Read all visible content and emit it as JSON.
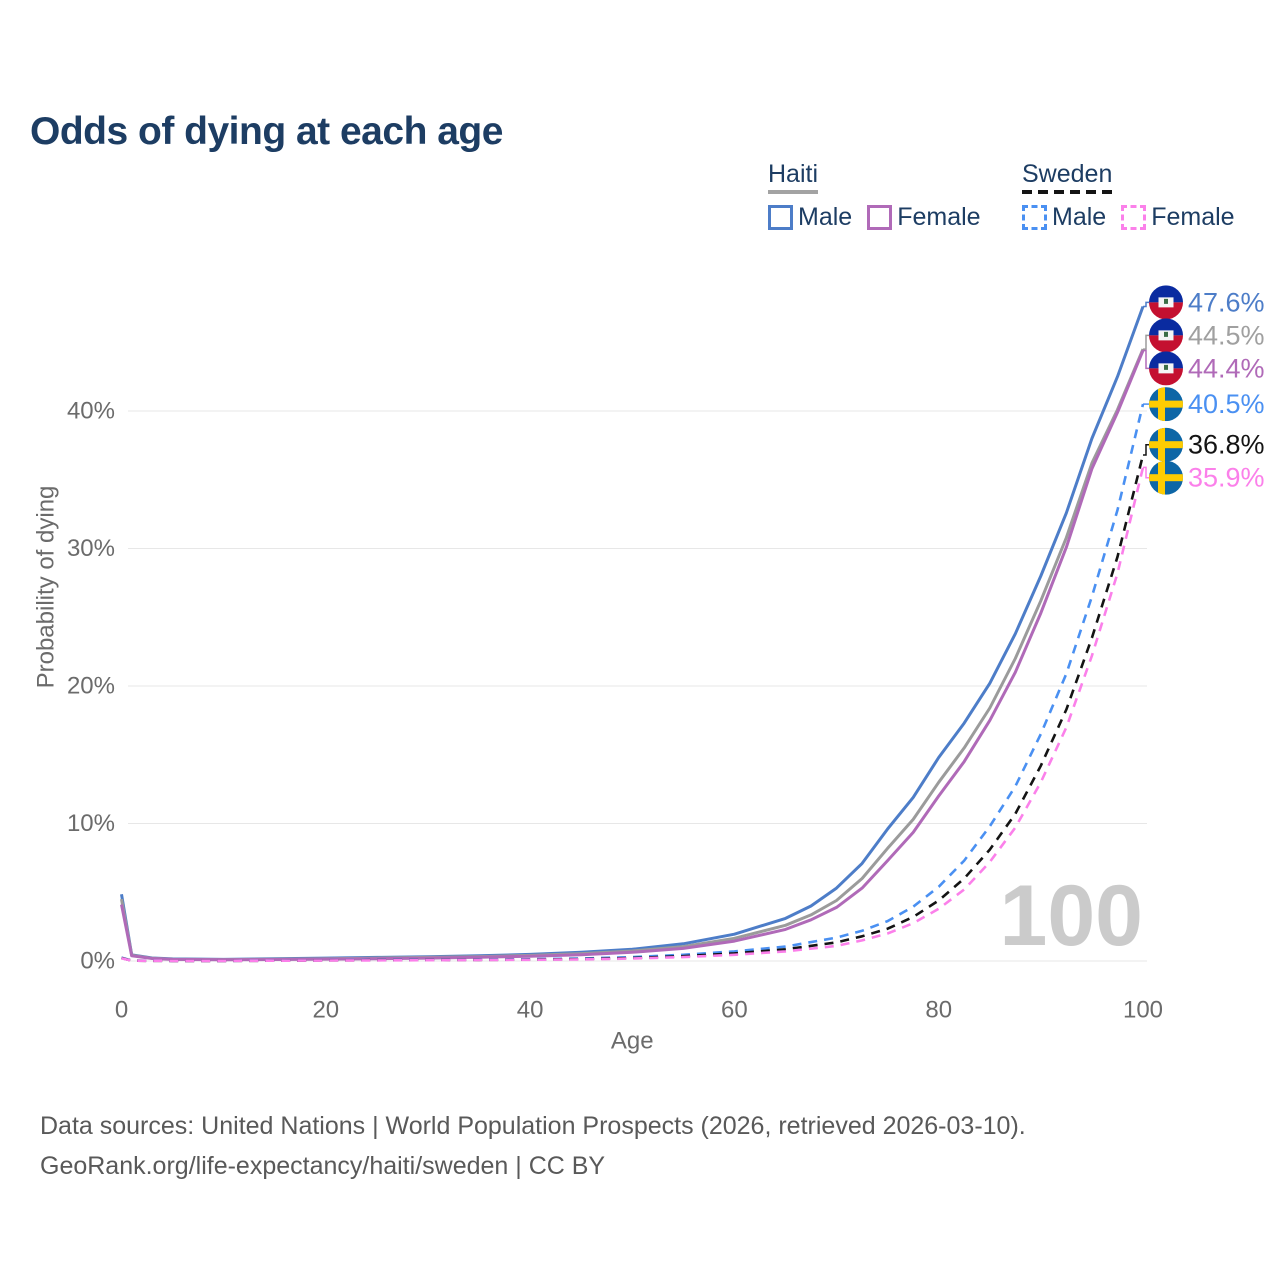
{
  "title": "Odds of dying at each age",
  "legend": {
    "groups": [
      {
        "country": "Haiti",
        "line_style": "solid",
        "underline_color": "#a3a3a3",
        "items": [
          {
            "label": "Male",
            "color": "#4d7dc8"
          },
          {
            "label": "Female",
            "color": "#b06ab8"
          }
        ]
      },
      {
        "country": "Sweden",
        "line_style": "dashed",
        "underline_color": "#141414",
        "items": [
          {
            "label": "Male",
            "color": "#4a90f2"
          },
          {
            "label": "Female",
            "color": "#fb80ea"
          }
        ]
      }
    ]
  },
  "chart_data": {
    "type": "line",
    "title": "Odds of dying at each age",
    "xlabel": "Age",
    "ylabel": "Probability of dying",
    "xlim": [
      0,
      100
    ],
    "ylim_pct": [
      0,
      48
    ],
    "x_ticks": [
      0,
      20,
      40,
      60,
      80,
      100
    ],
    "y_ticks": [
      {
        "value": 0,
        "label": "0%"
      },
      {
        "value": 10,
        "label": "10%"
      },
      {
        "value": 20,
        "label": "20%"
      },
      {
        "value": 30,
        "label": "30%"
      },
      {
        "value": 40,
        "label": "40%"
      }
    ],
    "grid": "horizontal-only",
    "watermark": "100",
    "legend_position": "top-right",
    "series": [
      {
        "name": "Haiti Male",
        "country": "haiti",
        "sex": "male",
        "dash": false,
        "color": "#4d7dc8",
        "end_label": "47.6%",
        "end_value": 47.6,
        "points": [
          [
            0,
            4.85
          ],
          [
            1,
            0.45
          ],
          [
            3,
            0.22
          ],
          [
            5,
            0.15
          ],
          [
            10,
            0.12
          ],
          [
            15,
            0.16
          ],
          [
            20,
            0.21
          ],
          [
            25,
            0.26
          ],
          [
            30,
            0.31
          ],
          [
            35,
            0.38
          ],
          [
            40,
            0.48
          ],
          [
            45,
            0.63
          ],
          [
            50,
            0.85
          ],
          [
            55,
            1.25
          ],
          [
            60,
            1.95
          ],
          [
            65,
            3.1
          ],
          [
            67.5,
            4.0
          ],
          [
            70,
            5.3
          ],
          [
            72.5,
            7.1
          ],
          [
            75,
            9.6
          ],
          [
            77.5,
            11.9
          ],
          [
            80,
            14.8
          ],
          [
            82.5,
            17.3
          ],
          [
            85,
            20.2
          ],
          [
            87.5,
            23.8
          ],
          [
            90,
            28.0
          ],
          [
            92.5,
            32.6
          ],
          [
            95,
            38.0
          ],
          [
            97.5,
            42.5
          ],
          [
            100,
            47.6
          ]
        ]
      },
      {
        "name": "Haiti",
        "country": "haiti",
        "sex": "both",
        "dash": false,
        "color": "#9b9b9b",
        "end_label": "44.5%",
        "end_value": 44.5,
        "points": [
          [
            0,
            4.5
          ],
          [
            1,
            0.42
          ],
          [
            3,
            0.2
          ],
          [
            5,
            0.13
          ],
          [
            10,
            0.1
          ],
          [
            15,
            0.13
          ],
          [
            20,
            0.17
          ],
          [
            25,
            0.21
          ],
          [
            30,
            0.26
          ],
          [
            35,
            0.32
          ],
          [
            40,
            0.41
          ],
          [
            45,
            0.54
          ],
          [
            50,
            0.73
          ],
          [
            55,
            1.05
          ],
          [
            60,
            1.65
          ],
          [
            65,
            2.6
          ],
          [
            67.5,
            3.35
          ],
          [
            70,
            4.4
          ],
          [
            72.5,
            6.0
          ],
          [
            75,
            8.2
          ],
          [
            77.5,
            10.3
          ],
          [
            80,
            13.0
          ],
          [
            82.5,
            15.5
          ],
          [
            85,
            18.4
          ],
          [
            87.5,
            22.0
          ],
          [
            90,
            26.2
          ],
          [
            92.5,
            30.8
          ],
          [
            95,
            36.2
          ],
          [
            97.5,
            40.1
          ],
          [
            100,
            44.5
          ]
        ]
      },
      {
        "name": "Haiti Female",
        "country": "haiti",
        "sex": "female",
        "dash": false,
        "color": "#b06ab8",
        "end_label": "44.4%",
        "end_value": 44.4,
        "points": [
          [
            0,
            4.1
          ],
          [
            1,
            0.38
          ],
          [
            3,
            0.18
          ],
          [
            5,
            0.12
          ],
          [
            10,
            0.09
          ],
          [
            15,
            0.11
          ],
          [
            20,
            0.14
          ],
          [
            25,
            0.17
          ],
          [
            30,
            0.21
          ],
          [
            35,
            0.27
          ],
          [
            40,
            0.35
          ],
          [
            45,
            0.46
          ],
          [
            50,
            0.63
          ],
          [
            55,
            0.92
          ],
          [
            60,
            1.45
          ],
          [
            65,
            2.3
          ],
          [
            67.5,
            3.0
          ],
          [
            70,
            3.9
          ],
          [
            72.5,
            5.3
          ],
          [
            75,
            7.3
          ],
          [
            77.5,
            9.35
          ],
          [
            80,
            12.0
          ],
          [
            82.5,
            14.5
          ],
          [
            85,
            17.5
          ],
          [
            87.5,
            21.0
          ],
          [
            90,
            25.3
          ],
          [
            92.5,
            30.1
          ],
          [
            95,
            35.8
          ],
          [
            97.5,
            39.9
          ],
          [
            100,
            44.4
          ]
        ]
      },
      {
        "name": "Sweden Male",
        "country": "sweden",
        "sex": "male",
        "dash": true,
        "color": "#4a90f2",
        "end_label": "40.5%",
        "end_value": 40.5,
        "points": [
          [
            0,
            0.25
          ],
          [
            1,
            0.03
          ],
          [
            5,
            0.012
          ],
          [
            10,
            0.012
          ],
          [
            15,
            0.03
          ],
          [
            20,
            0.06
          ],
          [
            25,
            0.07
          ],
          [
            30,
            0.08
          ],
          [
            35,
            0.1
          ],
          [
            40,
            0.13
          ],
          [
            45,
            0.18
          ],
          [
            50,
            0.28
          ],
          [
            55,
            0.45
          ],
          [
            60,
            0.7
          ],
          [
            65,
            1.05
          ],
          [
            70,
            1.7
          ],
          [
            72.5,
            2.2
          ],
          [
            75,
            2.9
          ],
          [
            77.5,
            3.95
          ],
          [
            80,
            5.4
          ],
          [
            82.5,
            7.3
          ],
          [
            85,
            9.8
          ],
          [
            87.5,
            12.7
          ],
          [
            90,
            16.5
          ],
          [
            92.5,
            20.9
          ],
          [
            95,
            26.5
          ],
          [
            97.5,
            32.8
          ],
          [
            100,
            40.5
          ]
        ]
      },
      {
        "name": "Sweden",
        "country": "sweden",
        "sex": "both",
        "dash": true,
        "color": "#141414",
        "end_label": "36.8%",
        "end_value": 36.8,
        "points": [
          [
            0,
            0.22
          ],
          [
            1,
            0.025
          ],
          [
            5,
            0.01
          ],
          [
            10,
            0.01
          ],
          [
            15,
            0.025
          ],
          [
            20,
            0.045
          ],
          [
            25,
            0.055
          ],
          [
            30,
            0.065
          ],
          [
            35,
            0.08
          ],
          [
            40,
            0.1
          ],
          [
            45,
            0.14
          ],
          [
            50,
            0.22
          ],
          [
            55,
            0.35
          ],
          [
            60,
            0.55
          ],
          [
            65,
            0.85
          ],
          [
            70,
            1.35
          ],
          [
            72.5,
            1.8
          ],
          [
            75,
            2.35
          ],
          [
            77.5,
            3.2
          ],
          [
            80,
            4.4
          ],
          [
            82.5,
            6.0
          ],
          [
            85,
            8.1
          ],
          [
            87.5,
            10.7
          ],
          [
            90,
            14.2
          ],
          [
            92.5,
            18.3
          ],
          [
            95,
            23.5
          ],
          [
            97.5,
            29.4
          ],
          [
            100,
            36.8
          ]
        ]
      },
      {
        "name": "Sweden Female",
        "country": "sweden",
        "sex": "female",
        "dash": true,
        "color": "#fb80ea",
        "end_label": "35.9%",
        "end_value": 35.9,
        "points": [
          [
            0,
            0.2
          ],
          [
            1,
            0.02
          ],
          [
            5,
            0.01
          ],
          [
            10,
            0.01
          ],
          [
            15,
            0.02
          ],
          [
            20,
            0.035
          ],
          [
            25,
            0.045
          ],
          [
            30,
            0.055
          ],
          [
            35,
            0.07
          ],
          [
            40,
            0.09
          ],
          [
            45,
            0.12
          ],
          [
            50,
            0.18
          ],
          [
            55,
            0.28
          ],
          [
            60,
            0.45
          ],
          [
            65,
            0.7
          ],
          [
            70,
            1.1
          ],
          [
            72.5,
            1.5
          ],
          [
            75,
            2.0
          ],
          [
            77.5,
            2.75
          ],
          [
            80,
            3.8
          ],
          [
            82.5,
            5.2
          ],
          [
            85,
            7.2
          ],
          [
            87.5,
            9.7
          ],
          [
            90,
            13.0
          ],
          [
            92.5,
            17.0
          ],
          [
            95,
            22.2
          ],
          [
            97.5,
            28.2
          ],
          [
            100,
            35.9
          ]
        ]
      }
    ]
  },
  "flags": {
    "haiti": {
      "top": "#0a2ba0",
      "bottom": "#c41030",
      "panel": "#f5f5f5",
      "emblem": "#3c6e46"
    },
    "sweden": {
      "bg": "#0d66a6",
      "cross": "#fecc02"
    }
  },
  "colors": {
    "title": "#1d3d63",
    "axis_text": "#6b6b6b",
    "grid": "#e7e7e7",
    "watermark": "#cbcbcb",
    "footer_text": "#595959"
  },
  "footer": {
    "line1": "Data sources: United Nations | World Population Prospects (2026, retrieved 2026-03-10).",
    "line2": "GeoRank.org/life-expectancy/haiti/sweden | CC BY"
  }
}
